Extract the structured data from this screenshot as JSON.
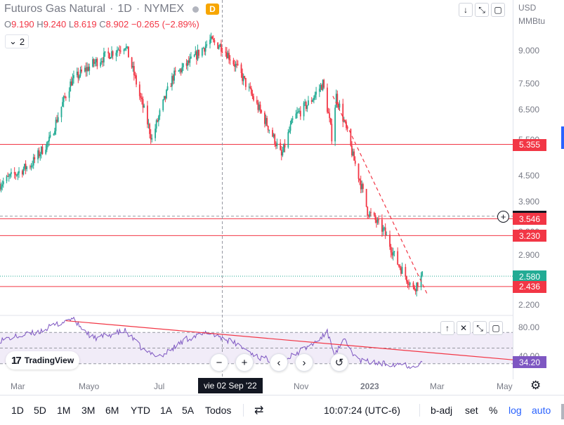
{
  "symbol": {
    "name": "Futuros Gas Natural",
    "interval": "1D",
    "exchange": "NYMEX",
    "delay_badge": "D",
    "separator": "·"
  },
  "ohlc": {
    "o_label": "O",
    "o": "9.190",
    "h_label": "H",
    "h": "9.240",
    "l_label": "L",
    "l": "8.619",
    "c_label": "C",
    "c": "8.902",
    "change": "−0.265 (−2.89%)"
  },
  "indicator_toggle": {
    "icon": "chevron-down-icon",
    "count": "2"
  },
  "price_axis": {
    "currency": "USD",
    "unit": "MMBtu",
    "ticks": [
      "9.000",
      "7.500",
      "6.500",
      "5.500",
      "4.500",
      "3.900",
      "3.300",
      "2.900",
      "2.200"
    ],
    "labels": [
      {
        "value": "5.355",
        "color": "#f23645"
      },
      {
        "value": "3.597",
        "color": "#131722"
      },
      {
        "value": "3.546",
        "color": "#f23645"
      },
      {
        "value": "3.230",
        "color": "#f23645"
      },
      {
        "value": "2.580",
        "color": "#22ab94"
      },
      {
        "value": "2.436",
        "color": "#f23645"
      }
    ]
  },
  "indicator_pane": {
    "ticks": [
      "80.00",
      "40.00"
    ],
    "rsi_value": "34.20",
    "rsi_color": "#7e57c2"
  },
  "time_axis": {
    "labels": [
      "Mar",
      "Mayo",
      "Jul",
      "Nov",
      "2023",
      "Mar",
      "May"
    ],
    "crosshair_date": "vie 02 Sep '22"
  },
  "branding": {
    "logo_text": "TradingView"
  },
  "bottom_bar": {
    "ranges": [
      "1D",
      "5D",
      "1M",
      "3M",
      "6M",
      "YTD",
      "1A",
      "5A",
      "Todos"
    ],
    "time": "10:07:24 (UTC-6)",
    "b_adj": "b-adj",
    "set": "set",
    "percent": "%",
    "log": "log",
    "auto": "auto"
  },
  "colors": {
    "up": "#22ab94",
    "down": "#f23645",
    "level_line": "#f23645",
    "rsi": "#7e57c2",
    "accent": "#2962ff"
  },
  "chart_data": {
    "type": "candlestick",
    "levels": [
      5.355,
      3.546,
      3.23,
      2.436
    ],
    "last_price": 2.58,
    "crosshair_price": 3.597,
    "price_range": [
      2.1,
      10.2
    ],
    "x_range": [
      "2022-02-15",
      "2023-05-20"
    ],
    "price_waypoints": [
      [
        "2022-02-15",
        4.3
      ],
      [
        "2022-03-15",
        4.8
      ],
      [
        "2022-04-01",
        5.5
      ],
      [
        "2022-04-20",
        7.6
      ],
      [
        "2022-05-10",
        8.4
      ],
      [
        "2022-06-07",
        9.3
      ],
      [
        "2022-06-20",
        7.0
      ],
      [
        "2022-07-01",
        5.5
      ],
      [
        "2022-07-20",
        7.8
      ],
      [
        "2022-08-05",
        8.5
      ],
      [
        "2022-08-22",
        9.5
      ],
      [
        "2022-09-02",
        9.2
      ],
      [
        "2022-09-15",
        8.2
      ],
      [
        "2022-10-01",
        6.8
      ],
      [
        "2022-10-20",
        5.4
      ],
      [
        "2022-10-25",
        5.0
      ],
      [
        "2022-11-05",
        6.2
      ],
      [
        "2022-11-20",
        6.8
      ],
      [
        "2022-12-01",
        7.5
      ],
      [
        "2022-12-09",
        5.6
      ],
      [
        "2022-12-13",
        7.0
      ],
      [
        "2022-12-28",
        5.0
      ],
      [
        "2023-01-10",
        3.7
      ],
      [
        "2023-01-25",
        3.3
      ],
      [
        "2023-02-05",
        2.8
      ],
      [
        "2023-02-20",
        2.4
      ],
      [
        "2023-02-28",
        2.58
      ]
    ],
    "rsi_waypoints": [
      [
        "2022-02-15",
        60
      ],
      [
        "2022-03-20",
        70
      ],
      [
        "2022-04-20",
        88
      ],
      [
        "2022-05-10",
        62
      ],
      [
        "2022-06-07",
        72
      ],
      [
        "2022-06-25",
        45
      ],
      [
        "2022-07-10",
        40
      ],
      [
        "2022-08-01",
        62
      ],
      [
        "2022-08-22",
        70
      ],
      [
        "2022-09-15",
        55
      ],
      [
        "2022-10-05",
        38
      ],
      [
        "2022-10-25",
        32
      ],
      [
        "2022-11-25",
        58
      ],
      [
        "2022-12-05",
        70
      ],
      [
        "2022-12-12",
        42
      ],
      [
        "2022-12-20",
        60
      ],
      [
        "2023-01-01",
        35
      ],
      [
        "2023-01-20",
        30
      ],
      [
        "2023-02-10",
        30
      ],
      [
        "2023-02-20",
        26
      ],
      [
        "2023-02-28",
        34.2
      ]
    ],
    "rsi_range": [
      10,
      90
    ],
    "rsi_band": [
      30,
      70
    ]
  }
}
